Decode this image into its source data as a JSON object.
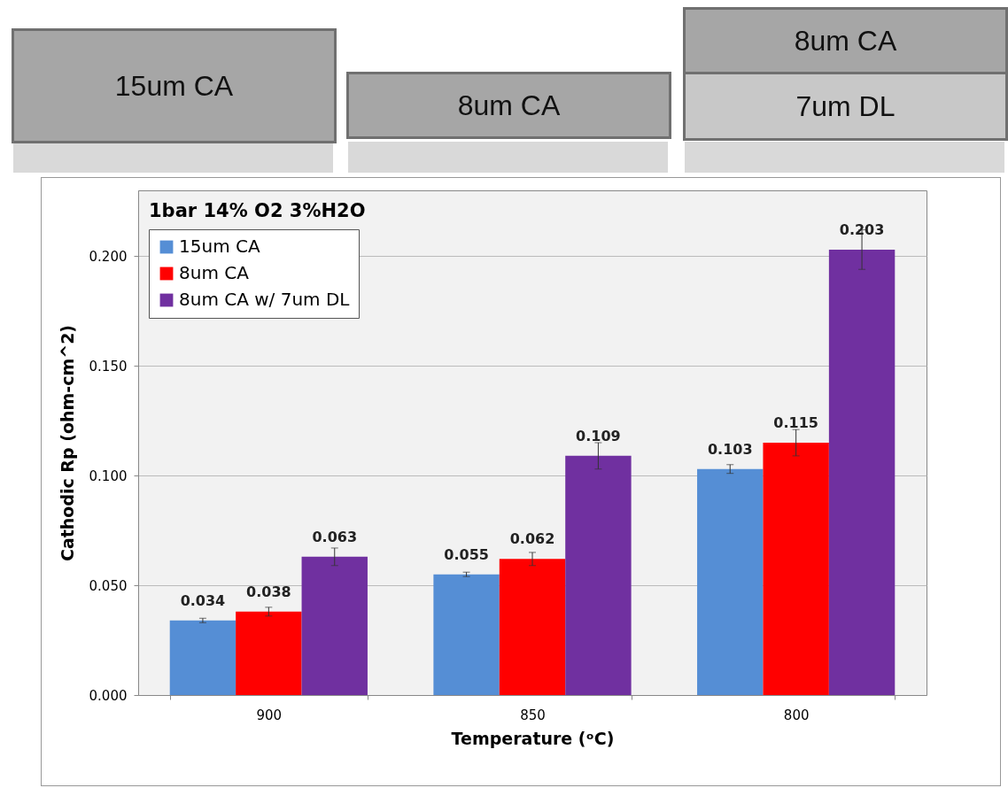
{
  "chart_data": {
    "type": "bar",
    "title": "1bar 14% O2 3%H2O",
    "xlabel": "Temperature (ᵒC)",
    "ylabel": "Cathodic Rp (ohm-cm^2)",
    "categories": [
      "900",
      "850",
      "800"
    ],
    "series": [
      {
        "name": "15um CA",
        "color": "#558ed5",
        "values": [
          0.034,
          0.055,
          0.103
        ],
        "errors": [
          0.001,
          0.001,
          0.002
        ]
      },
      {
        "name": "8um CA",
        "color": "#ff0000",
        "values": [
          0.038,
          0.062,
          0.115
        ],
        "errors": [
          0.002,
          0.003,
          0.006
        ]
      },
      {
        "name": "8um CA w/ 7um DL",
        "color": "#7030a0",
        "values": [
          0.063,
          0.109,
          0.203
        ],
        "errors": [
          0.004,
          0.006,
          0.009
        ]
      }
    ],
    "ylim": [
      0,
      0.23
    ],
    "yticks": [
      {
        "value": 0,
        "label": "0.000"
      },
      {
        "value": 0.05,
        "label": "0.050"
      },
      {
        "value": 0.1,
        "label": "0.100"
      },
      {
        "value": 0.15,
        "label": "0.150"
      },
      {
        "value": 0.2,
        "label": "0.200"
      }
    ],
    "grid": "y",
    "legend": "top left",
    "data_labels": true,
    "annotations": [
      "15um CA",
      "8um CA",
      "8um CA",
      "7um DL"
    ]
  }
}
